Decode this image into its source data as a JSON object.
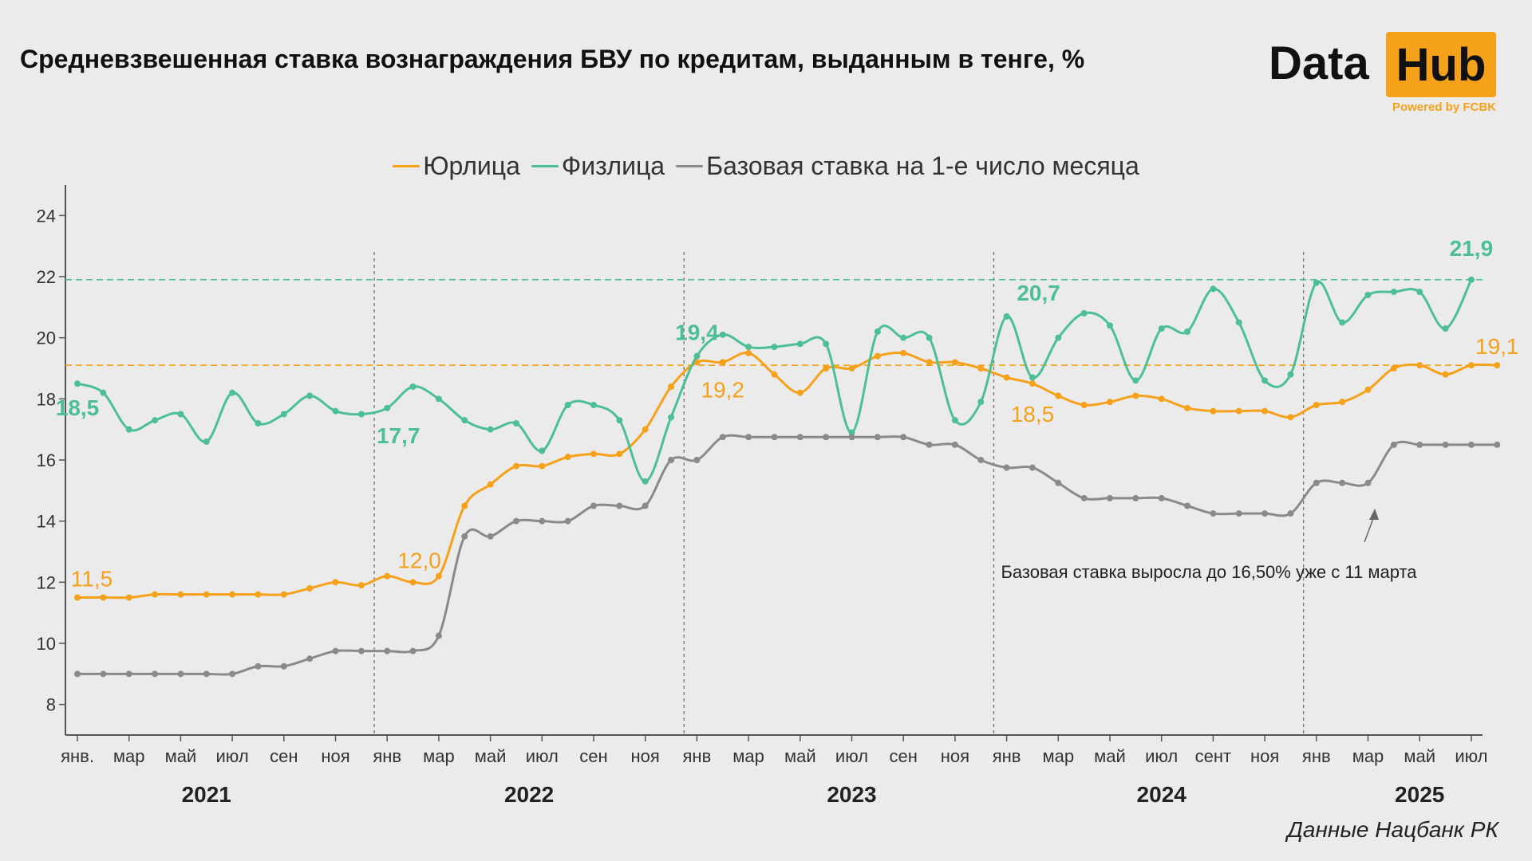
{
  "title": "Средневзвешенная ставка вознаграждения БВУ по кредитам, выданным в тенге, %",
  "logo": {
    "word1": "Data",
    "word2": "Hub",
    "tagline": "Powered by FCBK"
  },
  "source": "Данные Нацбанк РК",
  "colors": {
    "legal": "#f5a11a",
    "individual": "#4cbf96",
    "base": "#8a8a8a"
  },
  "chart_data": {
    "type": "line",
    "legend_placement": "top-center",
    "ylim": [
      7,
      25
    ],
    "yticks": [
      8,
      10,
      12,
      14,
      16,
      18,
      20,
      22,
      24
    ],
    "x_tick_labels": [
      "янв.",
      "мар",
      "май",
      "июл",
      "сен",
      "ноя",
      "янв",
      "мар",
      "май",
      "июл",
      "сен",
      "ноя",
      "янв",
      "мар",
      "май",
      "июл",
      "сен",
      "ноя",
      "янв",
      "мар",
      "май",
      "июл",
      "сент",
      "ноя",
      "янв",
      "мар",
      "май",
      "июл"
    ],
    "years": [
      {
        "label": "2021",
        "center": 5.0
      },
      {
        "label": "2022",
        "center": 17.5
      },
      {
        "label": "2023",
        "center": 30.0
      },
      {
        "label": "2024",
        "center": 42.0
      },
      {
        "label": "2025",
        "center": 52.0
      }
    ],
    "year_dividers": [
      11.5,
      23.5,
      35.5,
      47.5
    ],
    "series": [
      {
        "name": "Юрлица",
        "key": "legal",
        "values": [
          11.5,
          11.5,
          11.5,
          11.6,
          11.6,
          11.6,
          11.6,
          11.6,
          11.6,
          11.8,
          12.0,
          11.9,
          12.2,
          12.0,
          12.2,
          14.5,
          15.2,
          15.8,
          15.8,
          16.1,
          16.2,
          16.2,
          17.0,
          18.4,
          19.2,
          19.2,
          19.5,
          18.8,
          18.2,
          19.0,
          19.0,
          19.4,
          19.5,
          19.2,
          19.2,
          19.0,
          18.7,
          18.5,
          18.1,
          17.8,
          17.9,
          18.1,
          18.0,
          17.7,
          17.6,
          17.6,
          17.6,
          17.4,
          17.8,
          17.9,
          18.3,
          19.0,
          19.1,
          18.8,
          19.1,
          19.1
        ]
      },
      {
        "name": "Физлица",
        "key": "individual",
        "values": [
          18.5,
          18.2,
          17.0,
          17.3,
          17.5,
          16.6,
          18.2,
          17.2,
          17.5,
          18.1,
          17.6,
          17.5,
          17.7,
          18.4,
          18.0,
          17.3,
          17.0,
          17.2,
          16.3,
          17.8,
          17.8,
          17.3,
          15.3,
          17.4,
          19.4,
          20.1,
          19.7,
          19.7,
          19.8,
          19.8,
          16.9,
          20.2,
          20.0,
          20.0,
          17.3,
          17.9,
          20.7,
          18.7,
          20.0,
          20.8,
          20.4,
          18.6,
          20.3,
          20.2,
          21.6,
          20.5,
          18.6,
          18.8,
          21.8,
          20.5,
          21.4,
          21.5,
          21.5,
          20.3,
          21.9
        ]
      },
      {
        "name": "Базовая ставка на 1-е число месяца",
        "key": "base",
        "values": [
          9.0,
          9.0,
          9.0,
          9.0,
          9.0,
          9.0,
          9.0,
          9.25,
          9.25,
          9.5,
          9.75,
          9.75,
          9.75,
          9.75,
          10.25,
          13.5,
          13.5,
          14.0,
          14.0,
          14.0,
          14.5,
          14.5,
          14.5,
          16.0,
          16.0,
          16.75,
          16.75,
          16.75,
          16.75,
          16.75,
          16.75,
          16.75,
          16.75,
          16.5,
          16.5,
          16.0,
          15.75,
          15.75,
          15.25,
          14.75,
          14.75,
          14.75,
          14.75,
          14.5,
          14.25,
          14.25,
          14.25,
          14.25,
          15.25,
          15.25,
          15.25,
          16.5,
          16.5,
          16.5,
          16.5,
          16.5
        ]
      }
    ],
    "reference_lines": [
      {
        "key": "individual",
        "value": 21.9
      },
      {
        "key": "legal",
        "value": 19.1
      }
    ],
    "value_labels": [
      {
        "key": "individual",
        "text": "18,5",
        "i": 0
      },
      {
        "key": "individual",
        "text": "17,7",
        "i": 12
      },
      {
        "key": "individual",
        "text": "19,4",
        "i": 24
      },
      {
        "key": "individual",
        "text": "20,7",
        "i": 36
      },
      {
        "key": "individual",
        "text": "21,9",
        "i": 54
      },
      {
        "key": "legal",
        "text": "11,5",
        "i": 0
      },
      {
        "key": "legal",
        "text": "12,0",
        "i": 13
      },
      {
        "key": "legal",
        "text": "19,2",
        "i": 25
      },
      {
        "key": "legal",
        "text": "18,5",
        "i": 37
      },
      {
        "key": "legal",
        "text": "19,1",
        "i": 55
      }
    ],
    "annotation": {
      "text": "Базовая ставка выросла до 16,50% уже с 11 марта"
    }
  }
}
